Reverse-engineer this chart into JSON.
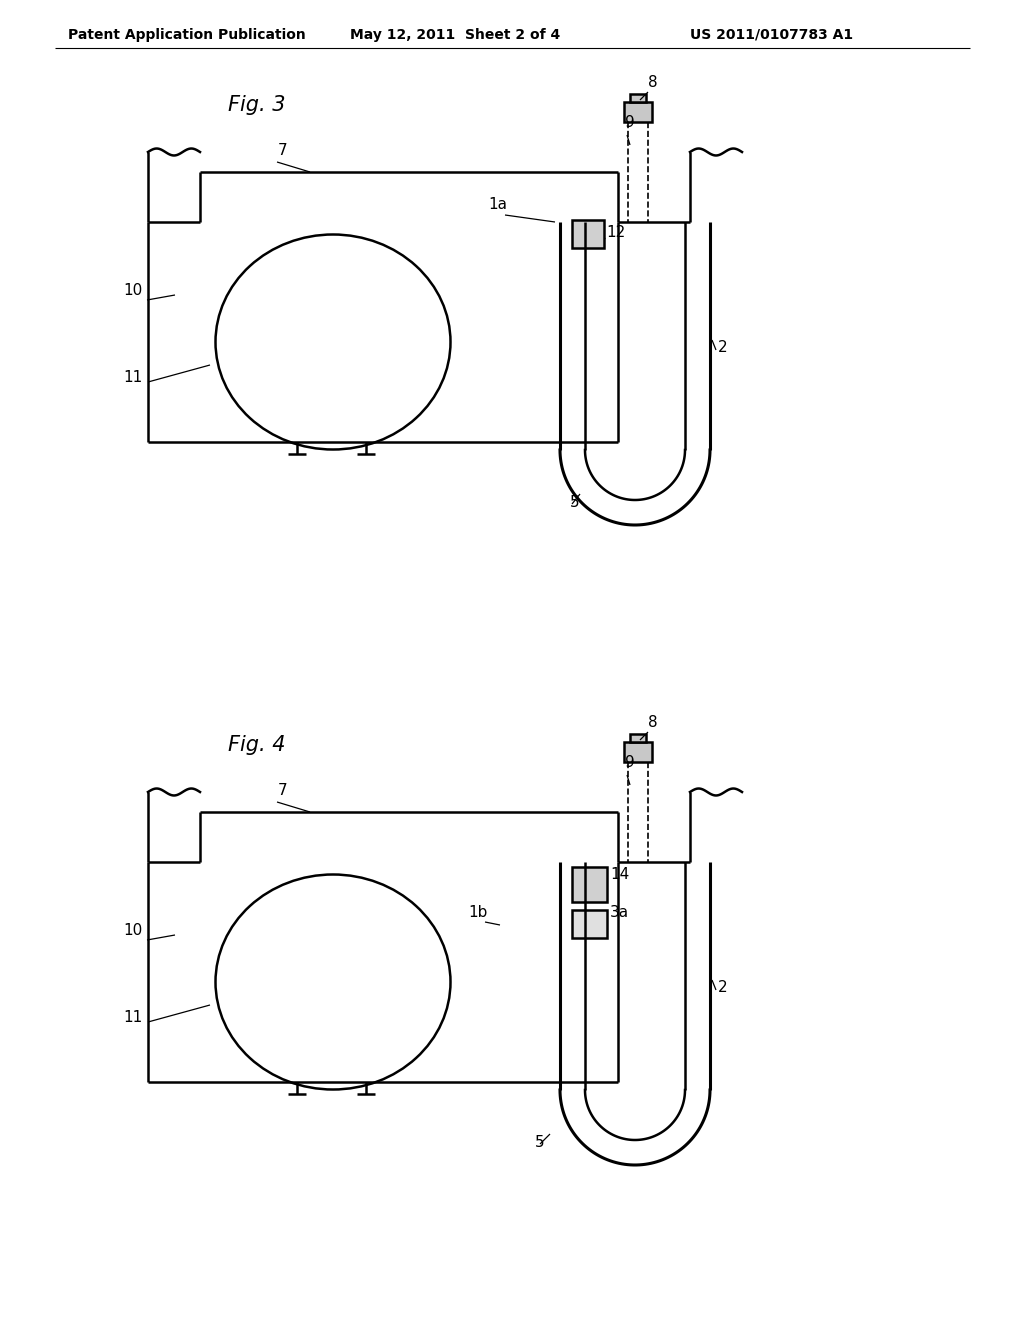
{
  "background_color": "#ffffff",
  "header_text": "Patent Application Publication",
  "header_date": "May 12, 2011  Sheet 2 of 4",
  "header_patent": "US 2011/0107783 A1",
  "fig3_label": "Fig. 3",
  "fig4_label": "Fig. 4",
  "line_color": "#000000",
  "lw": 1.8,
  "tlw": 2.2,
  "label_fs": 11,
  "header_fs": 10,
  "fig_label_fs": 15
}
